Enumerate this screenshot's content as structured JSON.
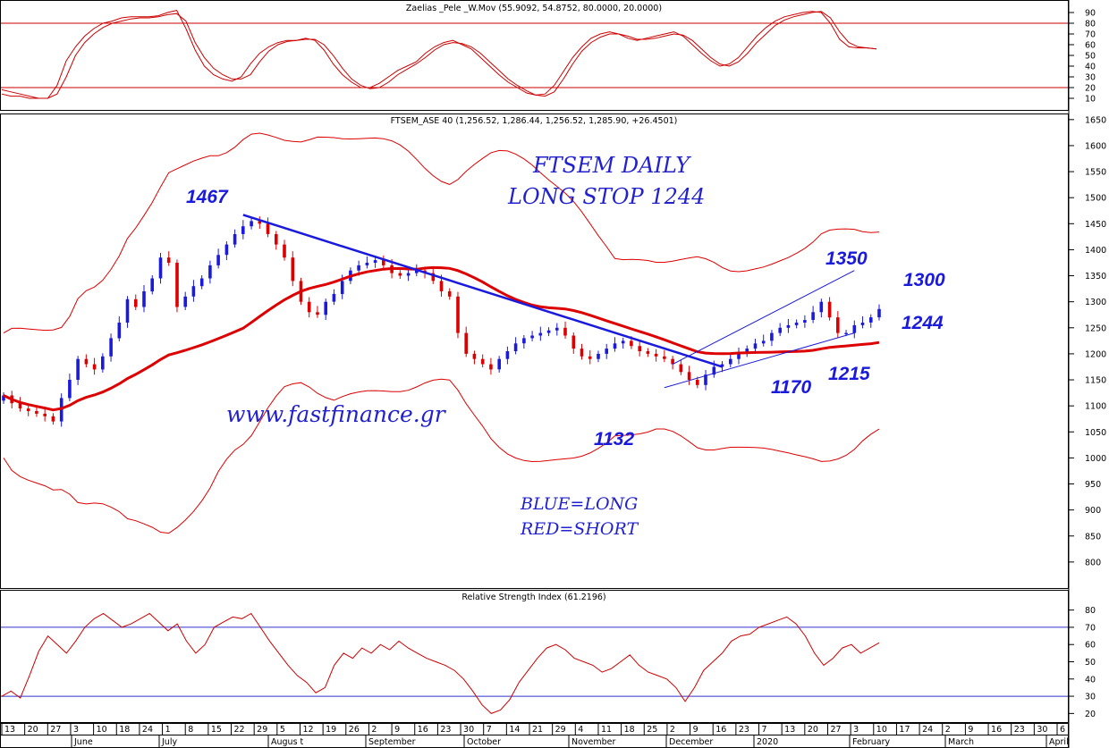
{
  "chart_data": [
    {
      "type": "line",
      "panel": "stochastic",
      "title": "Zaelias _Pele _W.Mov (55.9092, 54.8752, 80.0000, 20.0000)",
      "ylim": [
        0,
        100
      ],
      "y_ticks": [
        10,
        20,
        30,
        40,
        50,
        60,
        70,
        80,
        90
      ],
      "reference_lines": [
        80,
        20
      ],
      "line_color": "#cc0000",
      "series": [
        {
          "values": [
            18,
            16,
            14,
            12,
            10,
            10,
            22,
            45,
            58,
            68,
            75,
            80,
            82,
            85,
            86,
            86,
            86,
            87,
            90,
            92,
            75,
            55,
            40,
            32,
            28,
            26,
            30,
            42,
            52,
            58,
            62,
            64,
            64,
            66,
            64,
            55,
            42,
            32,
            25,
            20,
            20,
            24,
            30,
            36,
            40,
            44,
            52,
            58,
            62,
            64,
            60,
            56,
            48,
            40,
            32,
            25,
            20,
            15,
            13,
            14,
            22,
            35,
            48,
            58,
            66,
            70,
            72,
            70,
            66,
            64,
            66,
            68,
            70,
            72,
            68,
            60,
            52,
            45,
            40,
            42,
            48,
            58,
            68,
            76,
            82,
            86,
            88,
            90,
            91,
            90,
            80,
            65,
            58,
            57,
            57,
            56
          ]
        },
        {
          "values": [
            14,
            12,
            12,
            10,
            10,
            10,
            14,
            30,
            50,
            62,
            70,
            76,
            80,
            82,
            84,
            85,
            85,
            86,
            88,
            89,
            82,
            62,
            48,
            38,
            32,
            28,
            28,
            32,
            44,
            54,
            60,
            63,
            64,
            65,
            65,
            60,
            50,
            38,
            28,
            22,
            19,
            20,
            25,
            32,
            37,
            42,
            48,
            55,
            60,
            62,
            61,
            58,
            52,
            44,
            36,
            28,
            22,
            17,
            13,
            12,
            16,
            28,
            42,
            54,
            62,
            67,
            70,
            70,
            68,
            65,
            65,
            66,
            68,
            70,
            69,
            64,
            56,
            48,
            42,
            40,
            44,
            52,
            62,
            70,
            78,
            83,
            86,
            88,
            90,
            91,
            85,
            72,
            62,
            58,
            57,
            56
          ]
        }
      ]
    },
    {
      "type": "candlestick",
      "panel": "price",
      "title": "FTSEM_ASE 40 (1,256.52, 1,286.44, 1,256.52, 1,285.90, +26.4501)",
      "ylim": [
        750,
        1660
      ],
      "y_ticks": [
        800,
        850,
        900,
        950,
        1000,
        1050,
        1100,
        1150,
        1200,
        1250,
        1300,
        1350,
        1400,
        1450,
        1500,
        1550,
        1600,
        1650
      ],
      "up_color": "#1a1adc",
      "down_color": "#dd0000",
      "close": [
        1120,
        1105,
        1095,
        1090,
        1085,
        1080,
        1070,
        1115,
        1150,
        1190,
        1180,
        1170,
        1195,
        1230,
        1260,
        1305,
        1290,
        1320,
        1345,
        1385,
        1375,
        1290,
        1310,
        1330,
        1345,
        1370,
        1390,
        1410,
        1430,
        1445,
        1455,
        1450,
        1430,
        1410,
        1385,
        1340,
        1300,
        1280,
        1275,
        1300,
        1315,
        1340,
        1360,
        1370,
        1375,
        1380,
        1370,
        1355,
        1350,
        1355,
        1360,
        1355,
        1340,
        1320,
        1310,
        1240,
        1200,
        1190,
        1180,
        1170,
        1190,
        1205,
        1220,
        1230,
        1235,
        1240,
        1245,
        1250,
        1235,
        1210,
        1195,
        1190,
        1200,
        1210,
        1220,
        1225,
        1215,
        1205,
        1200,
        1195,
        1190,
        1180,
        1165,
        1150,
        1140,
        1160,
        1175,
        1180,
        1190,
        1200,
        1210,
        1220,
        1225,
        1240,
        1250,
        1255,
        1260,
        1265,
        1280,
        1300,
        1270,
        1240,
        1240,
        1255,
        1260,
        1270,
        1286
      ],
      "indicators": {
        "red_line_color": "#dd0000",
        "blue_line_color": "#1a1adc"
      }
    },
    {
      "type": "line",
      "panel": "rsi",
      "title": "Relative Strength Index (61.2196)",
      "ylim": [
        15,
        85
      ],
      "y_ticks": [
        20,
        30,
        40,
        50,
        60,
        70,
        80
      ],
      "reference_lines": [
        70,
        30
      ],
      "line_color": "#cc0000",
      "ref_line_color": "#3333cc",
      "values": [
        30,
        33,
        29,
        42,
        56,
        65,
        60,
        55,
        62,
        70,
        75,
        78,
        74,
        70,
        72,
        75,
        78,
        73,
        68,
        72,
        62,
        55,
        60,
        70,
        73,
        76,
        75,
        78,
        70,
        62,
        55,
        48,
        42,
        38,
        32,
        35,
        48,
        55,
        52,
        58,
        55,
        60,
        57,
        62,
        58,
        55,
        52,
        50,
        48,
        45,
        40,
        33,
        25,
        20,
        22,
        28,
        38,
        45,
        52,
        58,
        60,
        57,
        52,
        50,
        48,
        44,
        46,
        50,
        54,
        48,
        44,
        42,
        40,
        35,
        27,
        35,
        45,
        50,
        55,
        62,
        65,
        66,
        70,
        72,
        74,
        76,
        72,
        65,
        55,
        48,
        52,
        58,
        60,
        55,
        58,
        61
      ]
    }
  ],
  "x_axis": {
    "day_labels": [
      "13",
      "20",
      "27",
      "3",
      "10",
      "18",
      "24",
      "1",
      "8",
      "15",
      "22",
      "29",
      "5",
      "12",
      "19",
      "26",
      "2",
      "9",
      "16",
      "23",
      "30",
      "7",
      "14",
      "21",
      "29",
      "4",
      "11",
      "18",
      "25",
      "2",
      "9",
      "16",
      "23",
      "7",
      "13",
      "20",
      "27",
      "3",
      "10",
      "17",
      "24",
      "2",
      "9",
      "16",
      "23",
      "30",
      "6"
    ],
    "month_labels": [
      "June",
      "July",
      "Augus t",
      "September",
      "October",
      "November",
      "December",
      "2020",
      "February",
      "March",
      "April"
    ]
  },
  "annotations": {
    "high": "1467",
    "title_line1": "FTSEM DAILY",
    "title_line2": "LONG STOP 1244",
    "level_1350": "1350",
    "level_1300": "1300",
    "level_1244": "1244",
    "level_1215": "1215",
    "level_1170": "1170",
    "level_1132": "1132",
    "website": "www.fastfinance.gr",
    "legend_blue": "BLUE=LONG",
    "legend_red": "RED=SHORT"
  }
}
